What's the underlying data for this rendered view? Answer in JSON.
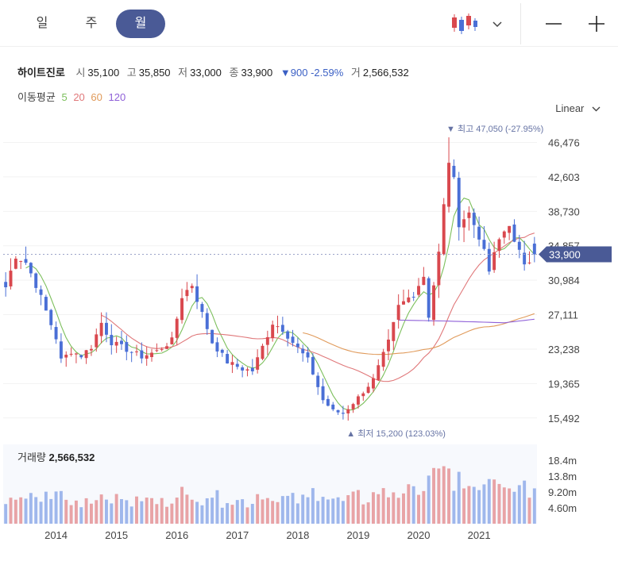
{
  "tabs": [
    {
      "label": "일",
      "active": false
    },
    {
      "label": "주",
      "active": false
    },
    {
      "label": "월",
      "active": true
    }
  ],
  "toolbar": {
    "chart_type_icon": "candlestick-icon",
    "dropdown_icon": "chevron-down-icon",
    "zoom_out_icon": "minus-icon",
    "zoom_in_icon": "plus-icon"
  },
  "stock": {
    "name": "하이트진로",
    "open_label": "시",
    "open": "35,100",
    "high_label": "고",
    "high": "35,850",
    "low_label": "저",
    "low": "33,000",
    "close_label": "종",
    "close": "33,900",
    "change": "▼900",
    "change_pct": "-2.59%",
    "volume_label": "거",
    "volume": "2,566,532"
  },
  "ma_legend": {
    "label": "이동평균",
    "periods": [
      {
        "period": "5",
        "color": "#7cbf5c"
      },
      {
        "period": "20",
        "color": "#e0787a"
      },
      {
        "period": "60",
        "color": "#e09a5a"
      },
      {
        "period": "120",
        "color": "#8f60d8"
      }
    ]
  },
  "scale_selector": {
    "label": "Linear",
    "icon": "chevron-down-icon"
  },
  "colors": {
    "up": "#d9484e",
    "down": "#4a6fd6",
    "current_price_tag": "#4a5a96"
  },
  "chart_data": {
    "type": "candlestick",
    "xaxis_years": [
      "2014",
      "2015",
      "2016",
      "2017",
      "2018",
      "2019",
      "2020",
      "2021"
    ],
    "price_ticks": [
      "46,476",
      "42,603",
      "38,730",
      "34,857",
      "30,984",
      "27,111",
      "23,238",
      "19,365",
      "15,492"
    ],
    "price_tick_values": [
      46476,
      42603,
      38730,
      34857,
      30984,
      27111,
      23238,
      19365,
      15492
    ],
    "ylim": [
      13600,
      50000
    ],
    "current_price_label": "33,900",
    "current_price": 33900,
    "max_annotation": "▼ 최고 47,050 (-27.95%)",
    "min_annotation": "▲ 최저 15,200 (123.03%)",
    "max_price": 47050,
    "min_price": 15200,
    "volume_title": "거래량",
    "volume_value": "2,566,532",
    "volume_ticks": [
      "18.4m",
      "13.8m",
      "9.20m",
      "4.60m"
    ],
    "volume_tick_values": [
      18.4,
      13.8,
      9.2,
      4.6
    ],
    "volume_max": 23,
    "first_month": "2013-03",
    "monthly_close_anchors": [
      [
        "2013-03",
        30200
      ],
      [
        "2013-05",
        33800
      ],
      [
        "2013-07",
        33000
      ],
      [
        "2013-09",
        30500
      ],
      [
        "2013-11",
        27500
      ],
      [
        "2014-01",
        24500
      ],
      [
        "2014-02",
        22000
      ],
      [
        "2014-04",
        23000
      ],
      [
        "2014-06",
        22500
      ],
      [
        "2014-08",
        23500
      ],
      [
        "2014-10",
        26200
      ],
      [
        "2014-12",
        24000
      ],
      [
        "2015-03",
        23200
      ],
      [
        "2015-06",
        22400
      ],
      [
        "2015-09",
        23000
      ],
      [
        "2015-12",
        24200
      ],
      [
        "2016-02",
        29200
      ],
      [
        "2016-04",
        30500
      ],
      [
        "2016-06",
        27200
      ],
      [
        "2016-08",
        24000
      ],
      [
        "2016-11",
        21800
      ],
      [
        "2017-02",
        21000
      ],
      [
        "2017-04",
        20800
      ],
      [
        "2017-06",
        23500
      ],
      [
        "2017-08",
        26200
      ],
      [
        "2017-10",
        25500
      ],
      [
        "2017-12",
        24000
      ],
      [
        "2018-03",
        22000
      ],
      [
        "2018-06",
        17500
      ],
      [
        "2018-08",
        16300
      ],
      [
        "2018-10",
        16000
      ],
      [
        "2019-01",
        17800
      ],
      [
        "2019-04",
        19800
      ],
      [
        "2019-07",
        24000
      ],
      [
        "2019-09",
        28000
      ],
      [
        "2019-12",
        29500
      ],
      [
        "2020-02",
        31500
      ],
      [
        "2020-03",
        27000
      ],
      [
        "2020-05",
        34000
      ],
      [
        "2020-07",
        44500
      ],
      [
        "2020-08",
        42000
      ],
      [
        "2020-09",
        37500
      ],
      [
        "2020-11",
        38500
      ],
      [
        "2021-01",
        36000
      ],
      [
        "2021-03",
        32000
      ],
      [
        "2021-05",
        35500
      ],
      [
        "2021-07",
        37500
      ],
      [
        "2021-08",
        35000
      ],
      [
        "2021-10",
        33000
      ],
      [
        "2021-12",
        33900
      ]
    ],
    "ma120_anchors": [
      [
        "2019-09",
        26500
      ],
      [
        "2020-06",
        26400
      ],
      [
        "2021-06",
        26200
      ],
      [
        "2021-12",
        26600
      ]
    ]
  }
}
